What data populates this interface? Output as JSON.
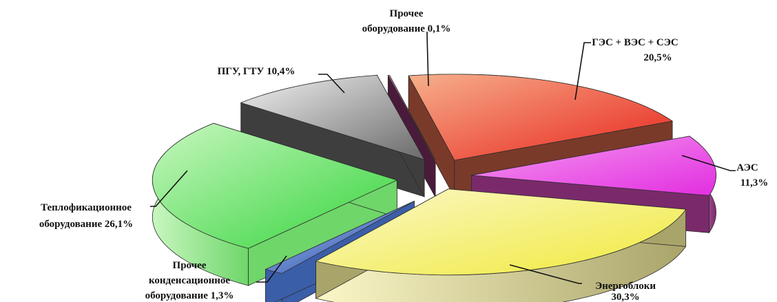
{
  "chart_data": {
    "type": "pie",
    "style": "3d-exploded",
    "title": "",
    "unit": "%",
    "slices": [
      {
        "label_lines": [
          "ГЭС + ВЭС + СЭС",
          "20,5%"
        ],
        "value": 20.5,
        "colors": {
          "light": "#f6b08c",
          "dark": "#e8231c",
          "side": "#7a3a2a"
        }
      },
      {
        "label_lines": [
          "АЭС",
          "11,3%"
        ],
        "value": 11.3,
        "colors": {
          "light": "#f59bf0",
          "dark": "#e22ee0",
          "side": "#7a2a6a"
        }
      },
      {
        "label_lines": [
          "Энергоблоки",
          "30,3%"
        ],
        "value": 30.3,
        "colors": {
          "light": "#fbf7c8",
          "dark": "#f0ea3a",
          "side": "#a9a46a"
        }
      },
      {
        "label_lines": [
          "Прочее",
          "конденсационное",
          "оборудование 1,3%"
        ],
        "value": 1.3,
        "colors": {
          "light": "#a8cdf2",
          "dark": "#1f3aa4",
          "side": "#3b5ea8"
        }
      },
      {
        "label_lines": [
          "Теплофикационное",
          "оборудование  26,1%"
        ],
        "value": 26.1,
        "colors": {
          "light": "#c8f7c0",
          "dark": "#33d43a",
          "side": "#6fd66a"
        }
      },
      {
        "label_lines": [
          "ПГУ, ГТУ 10,4%"
        ],
        "value": 10.4,
        "colors": {
          "light": "#f2f2f2",
          "dark": "#6a6a6a",
          "side": "#3e3e3e"
        }
      },
      {
        "label_lines": [
          "Прочее",
          "оборудование 0,1%"
        ],
        "value": 0.1,
        "colors": {
          "light": "#c07aa6",
          "dark": "#6a2a52",
          "side": "#4a1a3a"
        }
      }
    ]
  }
}
